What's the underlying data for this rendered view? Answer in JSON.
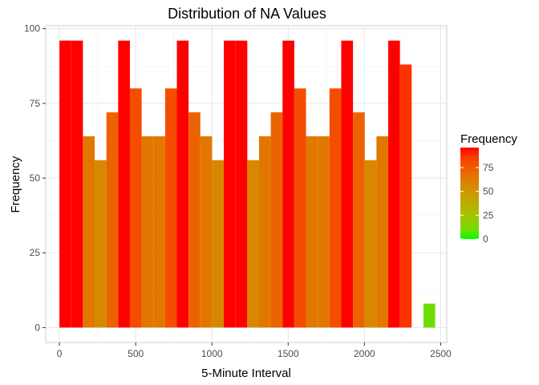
{
  "chart_data": {
    "type": "bar",
    "title": "Distribution of NA Values",
    "xlabel": "5-Minute Interval",
    "ylabel": "Frequency",
    "xlim": [
      -90,
      2540
    ],
    "ylim": [
      -5,
      101
    ],
    "x_ticks": [
      0,
      500,
      1000,
      1500,
      2000,
      2500
    ],
    "y_ticks": [
      0,
      25,
      50,
      75,
      100
    ],
    "grid": true,
    "bin_width": 77,
    "bins": [
      {
        "x": 38.5,
        "count": 96
      },
      {
        "x": 115.5,
        "count": 96
      },
      {
        "x": 192.5,
        "count": 64
      },
      {
        "x": 269.5,
        "count": 56
      },
      {
        "x": 346.5,
        "count": 72
      },
      {
        "x": 423.5,
        "count": 96
      },
      {
        "x": 500.5,
        "count": 80
      },
      {
        "x": 577.5,
        "count": 64
      },
      {
        "x": 654.5,
        "count": 64
      },
      {
        "x": 731.5,
        "count": 80
      },
      {
        "x": 808.5,
        "count": 96
      },
      {
        "x": 885.5,
        "count": 72
      },
      {
        "x": 962.5,
        "count": 64
      },
      {
        "x": 1039.5,
        "count": 56
      },
      {
        "x": 1116.5,
        "count": 96
      },
      {
        "x": 1193.5,
        "count": 96
      },
      {
        "x": 1270.5,
        "count": 56
      },
      {
        "x": 1347.5,
        "count": 64
      },
      {
        "x": 1424.5,
        "count": 72
      },
      {
        "x": 1501.5,
        "count": 96
      },
      {
        "x": 1578.5,
        "count": 80
      },
      {
        "x": 1655.5,
        "count": 64
      },
      {
        "x": 1732.5,
        "count": 64
      },
      {
        "x": 1809.5,
        "count": 80
      },
      {
        "x": 1886.5,
        "count": 96
      },
      {
        "x": 1963.5,
        "count": 72
      },
      {
        "x": 2040.5,
        "count": 56
      },
      {
        "x": 2117.5,
        "count": 64
      },
      {
        "x": 2194.5,
        "count": 96
      },
      {
        "x": 2271.5,
        "count": 88
      },
      {
        "x": 2348.5,
        "count": 0
      },
      {
        "x": 2425.5,
        "count": 8
      }
    ],
    "legend": {
      "title": "Frequency",
      "position": "right",
      "breaks": [
        0,
        25,
        50,
        75
      ],
      "range": [
        0,
        96
      ],
      "low_color": "#00ff00",
      "high_color": "#ff0000"
    }
  }
}
